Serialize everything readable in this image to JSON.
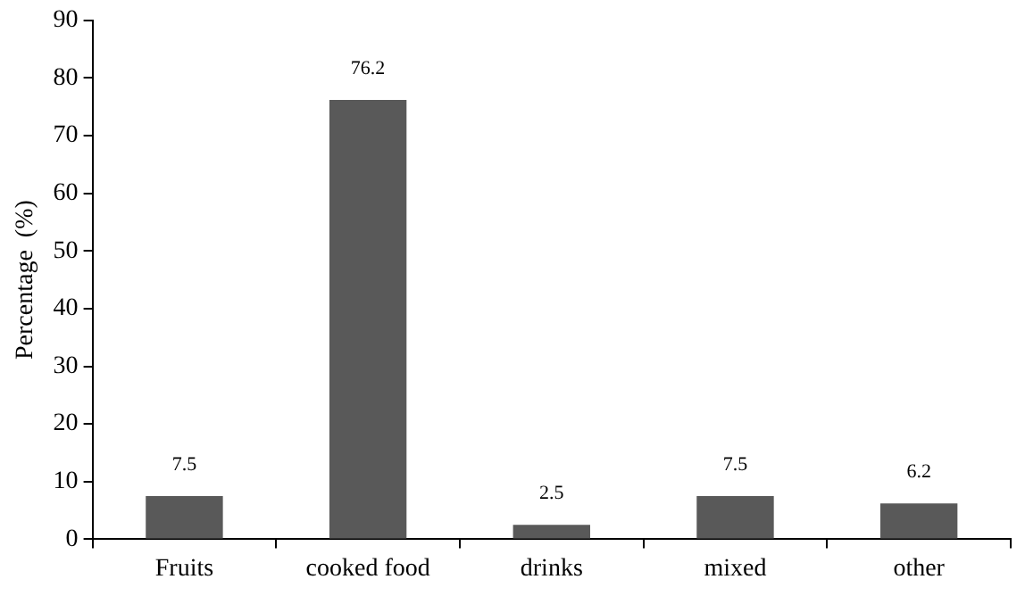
{
  "chart_data": {
    "type": "bar",
    "ylabel": "Percentage  (%)",
    "categories": [
      "Fruits",
      "cooked food",
      "drinks",
      "mixed",
      "other"
    ],
    "values": [
      7.5,
      76.2,
      2.5,
      7.5,
      6.2
    ],
    "color": "#595959",
    "ylim": [
      0,
      90
    ],
    "yticks": [
      0,
      10,
      20,
      30,
      40,
      50,
      60,
      70,
      80,
      90
    ],
    "grid": false,
    "legend": false,
    "data_labels": true
  }
}
